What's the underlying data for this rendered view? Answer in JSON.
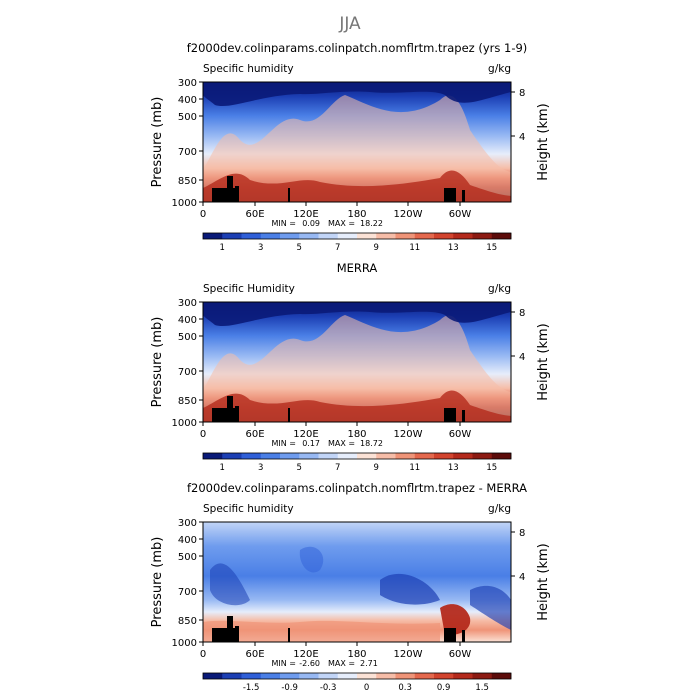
{
  "figure_title": "JJA",
  "chart_data": [
    {
      "type": "heatmap",
      "title": "f2000dev.colinparams.colinpatch.nomflrtm.trapez (yrs 1-9)",
      "left_label": "Specific humidity",
      "right_label": "g/kg",
      "xlabel": "",
      "ylabel": "Pressure (mb)",
      "ylabel_right": "Height (km)",
      "x_ticks": [
        "0",
        "60E",
        "120E",
        "180",
        "120W",
        "60W"
      ],
      "y_ticks": [
        "300",
        "400",
        "500",
        "700",
        "850",
        "1000"
      ],
      "y_ticks_right": [
        "8",
        "4"
      ],
      "stats": {
        "min_label": "MIN =",
        "min": "0.09",
        "max_label": "MAX =",
        "max": "18.22"
      },
      "colorbar_ticks": [
        "1",
        "3",
        "5",
        "7",
        "9",
        "11",
        "13",
        "15"
      ],
      "colorbar_colors": [
        "#0a1a78",
        "#1c3fb4",
        "#2f5fd8",
        "#4a7fe6",
        "#6f9cee",
        "#98b9f3",
        "#c2d5f7",
        "#e6edfb",
        "#fbe2d6",
        "#f6bda8",
        "#ef9478",
        "#e4684d",
        "#d2442e",
        "#b42a1c",
        "#8c1a12",
        "#5c0c0a"
      ]
    },
    {
      "type": "heatmap",
      "title": "MERRA",
      "left_label": "Specific Humidity",
      "right_label": "g/kg",
      "xlabel": "",
      "ylabel": "Pressure (mb)",
      "ylabel_right": "Height (km)",
      "x_ticks": [
        "0",
        "60E",
        "120E",
        "180",
        "120W",
        "60W"
      ],
      "y_ticks": [
        "300",
        "400",
        "500",
        "700",
        "850",
        "1000"
      ],
      "y_ticks_right": [
        "8",
        "4"
      ],
      "stats": {
        "min_label": "MIN =",
        "min": "0.17",
        "max_label": "MAX =",
        "max": "18.72"
      },
      "colorbar_ticks": [
        "1",
        "3",
        "5",
        "7",
        "9",
        "11",
        "13",
        "15"
      ],
      "colorbar_colors": [
        "#0a1a78",
        "#1c3fb4",
        "#2f5fd8",
        "#4a7fe6",
        "#6f9cee",
        "#98b9f3",
        "#c2d5f7",
        "#e6edfb",
        "#fbe2d6",
        "#f6bda8",
        "#ef9478",
        "#e4684d",
        "#d2442e",
        "#b42a1c",
        "#8c1a12",
        "#5c0c0a"
      ]
    },
    {
      "type": "heatmap",
      "title": "f2000dev.colinparams.colinpatch.nomflrtm.trapez - MERRA",
      "left_label": "Specific humidity",
      "right_label": "g/kg",
      "xlabel": "",
      "ylabel": "Pressure (mb)",
      "ylabel_right": "Height (km)",
      "x_ticks": [
        "0",
        "60E",
        "120E",
        "180",
        "120W",
        "60W"
      ],
      "y_ticks": [
        "300",
        "400",
        "500",
        "700",
        "850",
        "1000"
      ],
      "y_ticks_right": [
        "8",
        "4"
      ],
      "stats": {
        "min_label": "MIN =",
        "min": "-2.60",
        "max_label": "MAX =",
        "max": "2.71"
      },
      "colorbar_ticks": [
        "-1.5",
        "-0.9",
        "-0.3",
        "0",
        "0.3",
        "0.9",
        "1.5"
      ],
      "colorbar_colors": [
        "#0a1a78",
        "#1c3fb4",
        "#2f5fd8",
        "#4a7fe6",
        "#6f9cee",
        "#98b9f3",
        "#c2d5f7",
        "#e6edfb",
        "#fbe2d6",
        "#f6bda8",
        "#ef9478",
        "#e4684d",
        "#d2442e",
        "#b42a1c",
        "#8c1a12",
        "#5c0c0a"
      ]
    }
  ]
}
